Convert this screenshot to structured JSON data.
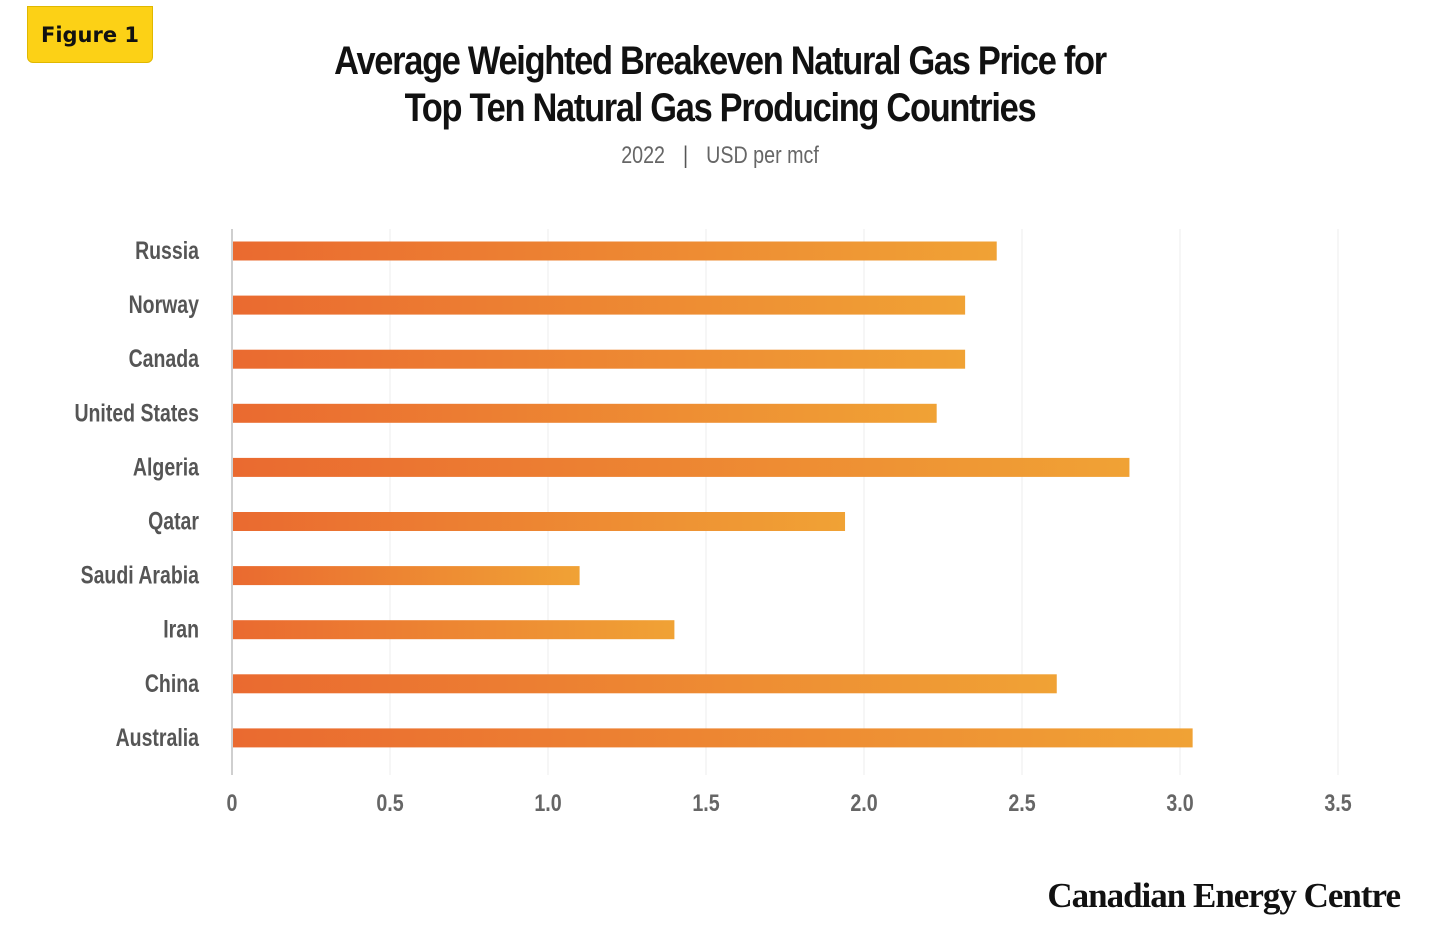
{
  "badge": {
    "label": "Figure 1"
  },
  "title": {
    "line1": "Average Weighted Breakeven  Natural Gas Price for",
    "line2": "Top Ten Natural Gas Producing Countries"
  },
  "subtitle": {
    "year": "2022",
    "separator": "|",
    "unit": "USD per mcf"
  },
  "logo": {
    "text": "Canadian Energy Centre"
  },
  "colors": {
    "bar_start": "#ea6a30",
    "bar_end": "#f0a235",
    "badge": "#fcd116"
  },
  "chart_data": {
    "type": "bar",
    "orientation": "horizontal",
    "categories": [
      "Russia",
      "Norway",
      "Canada",
      "United States",
      "Algeria",
      "Qatar",
      "Saudi Arabia",
      "Iran",
      "China",
      "Australia"
    ],
    "values": [
      2.42,
      2.32,
      2.32,
      2.23,
      2.84,
      1.94,
      1.1,
      1.4,
      2.61,
      3.04
    ],
    "xticks": [
      "0",
      "0.5",
      "1.0",
      "1.5",
      "2.0",
      "2.5",
      "3.0",
      "3.5"
    ],
    "xlim": [
      0,
      3.5
    ],
    "grid": true,
    "legend": "none"
  }
}
